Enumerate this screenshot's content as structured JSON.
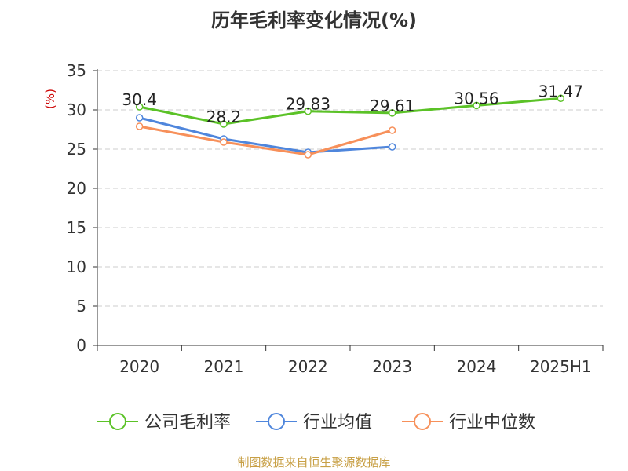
{
  "chart_data": {
    "type": "line",
    "title": "历年毛利率变化情况(%)",
    "ylabel": "(%)",
    "xlabel": "",
    "categories": [
      "2020",
      "2021",
      "2022",
      "2023",
      "2024",
      "2025H1"
    ],
    "ylim": [
      0,
      35
    ],
    "yticks": [
      0,
      5,
      10,
      15,
      20,
      25,
      30,
      35
    ],
    "grid": true,
    "legend_position": "bottom",
    "series": [
      {
        "name": "公司毛利率",
        "color": "#5bc227",
        "values": [
          30.4,
          28.2,
          29.83,
          29.61,
          30.56,
          31.47
        ],
        "labels": [
          "30.4",
          "28.2",
          "29.83",
          "29.61",
          "30.56",
          "31.47"
        ]
      },
      {
        "name": "行业均值",
        "color": "#4f86dc",
        "values": [
          29.0,
          26.3,
          24.6,
          25.3,
          null,
          null
        ]
      },
      {
        "name": "行业中位数",
        "color": "#f7905a",
        "values": [
          27.9,
          25.9,
          24.3,
          27.4,
          null,
          null
        ]
      }
    ]
  },
  "footer": {
    "source": "制图数据来自恒生聚源数据库"
  },
  "colors": {
    "axis": "#333333",
    "grid": "#cccccc",
    "ylabel": "#cc0000",
    "source": "#c8a046"
  }
}
